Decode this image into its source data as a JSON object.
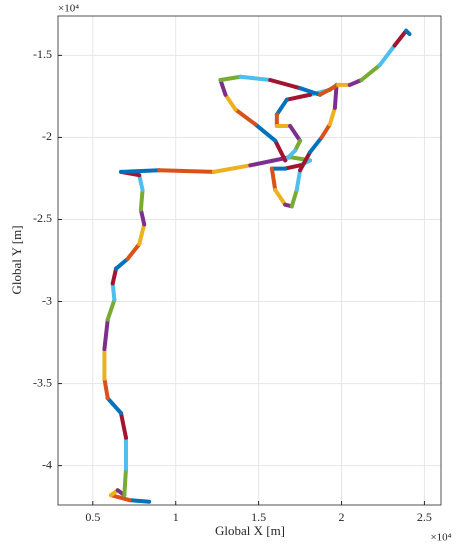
{
  "chart_data": {
    "type": "line",
    "x_label": "Global X [m]",
    "y_label": "Global Y [m]",
    "x_exponent": "×10⁴",
    "y_exponent": "×10⁴",
    "xlim": [
      0.29,
      2.6
    ],
    "ylim": [
      -4.24,
      -1.26
    ],
    "xticks": [
      0.5,
      1,
      1.5,
      2,
      2.5
    ],
    "yticks": [
      -4,
      -3.5,
      -3,
      -2.5,
      -2,
      -1.5
    ],
    "grid": true,
    "colors": [
      "#0072bd",
      "#d95319",
      "#edb120",
      "#7e2f8e",
      "#77ac30",
      "#4dbeee",
      "#a2142f"
    ],
    "x": [
      0.84,
      0.72,
      0.61,
      0.65,
      0.69,
      0.7,
      0.7,
      0.67,
      0.59,
      0.57,
      0.57,
      0.59,
      0.63,
      0.62,
      0.64,
      0.71,
      0.78,
      0.81,
      0.79,
      0.8,
      0.78,
      0.67,
      0.9,
      1.23,
      1.45,
      1.69,
      1.81,
      1.75,
      1.66,
      1.58,
      1.6,
      1.66,
      1.7,
      1.73,
      1.75,
      1.81,
      1.88,
      1.93,
      1.96,
      1.97,
      1.93,
      1.81,
      1.67,
      1.61,
      1.61,
      1.69,
      1.75,
      1.72,
      1.66,
      1.6,
      1.48,
      1.36,
      1.3,
      1.27,
      1.39,
      1.57,
      1.75,
      1.87,
      1.98,
      2.05,
      2.12,
      2.23,
      2.32,
      2.39,
      2.41
    ],
    "y": [
      -4.22,
      -4.21,
      -4.18,
      -4.15,
      -4.18,
      -4.02,
      -3.83,
      -3.68,
      -3.59,
      -3.47,
      -3.29,
      -3.11,
      -2.99,
      -2.89,
      -2.8,
      -2.74,
      -2.65,
      -2.53,
      -2.44,
      -2.32,
      -2.23,
      -2.21,
      -2.2,
      -2.21,
      -2.17,
      -2.12,
      -2.14,
      -2.17,
      -2.19,
      -2.19,
      -2.32,
      -2.41,
      -2.42,
      -2.32,
      -2.2,
      -2.09,
      -2.0,
      -1.92,
      -1.82,
      -1.68,
      -1.71,
      -1.74,
      -1.77,
      -1.86,
      -1.93,
      -1.93,
      -2.02,
      -2.08,
      -2.14,
      -2.02,
      -1.92,
      -1.83,
      -1.74,
      -1.65,
      -1.63,
      -1.65,
      -1.7,
      -1.74,
      -1.68,
      -1.68,
      -1.65,
      -1.56,
      -1.44,
      -1.35,
      -1.37
    ]
  }
}
